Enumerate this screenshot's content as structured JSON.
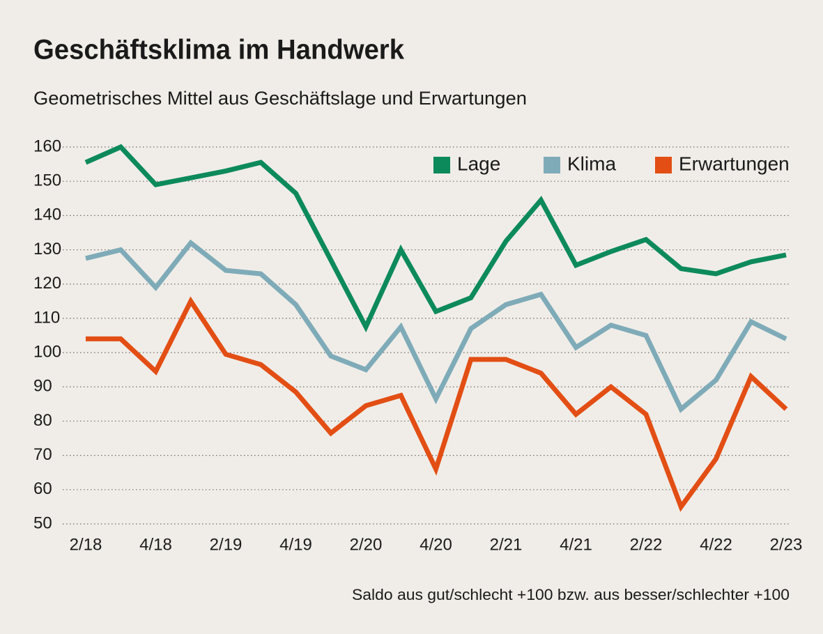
{
  "chart_data": {
    "type": "line",
    "title": "Geschäftsklima im Handwerk",
    "subtitle": "Geometrisches Mittel aus Geschäftslage und Erwartungen",
    "note": "Saldo aus gut/schlecht +100 bzw. aus besser/schlechter +100",
    "categories": [
      "2/18",
      null,
      "4/18",
      null,
      "2/19",
      null,
      "4/19",
      null,
      "2/20",
      null,
      "4/20",
      null,
      "2/21",
      null,
      "4/21",
      null,
      "2/22",
      null,
      "4/22",
      null,
      "2/23"
    ],
    "series": [
      {
        "name": "Lage",
        "color": "#0d8a5c",
        "values": [
          155.5,
          160,
          149,
          151,
          153,
          155.5,
          146.5,
          127,
          107.5,
          130,
          112,
          116,
          132.5,
          144.5,
          125.5,
          129.5,
          133,
          124.5,
          123,
          126.5,
          128.5
        ]
      },
      {
        "name": "Klima",
        "color": "#7fabb8",
        "values": [
          127.5,
          130,
          119,
          132,
          124,
          123,
          114,
          99,
          95,
          107.5,
          86.5,
          107,
          114,
          117,
          101.5,
          108,
          105,
          83.5,
          92,
          109,
          104
        ]
      },
      {
        "name": "Erwartungen",
        "color": "#e24e14",
        "values": [
          104,
          104,
          94.5,
          115,
          99.5,
          96.5,
          88.5,
          76.5,
          84.5,
          87.5,
          66,
          98,
          98,
          94,
          82,
          90,
          82,
          55,
          69,
          93,
          83.5
        ]
      }
    ],
    "ylim": [
      50,
      160
    ],
    "yticks": [
      50,
      60,
      70,
      80,
      90,
      100,
      110,
      120,
      130,
      140,
      150,
      160
    ],
    "grid": true,
    "legend": "top-right"
  }
}
